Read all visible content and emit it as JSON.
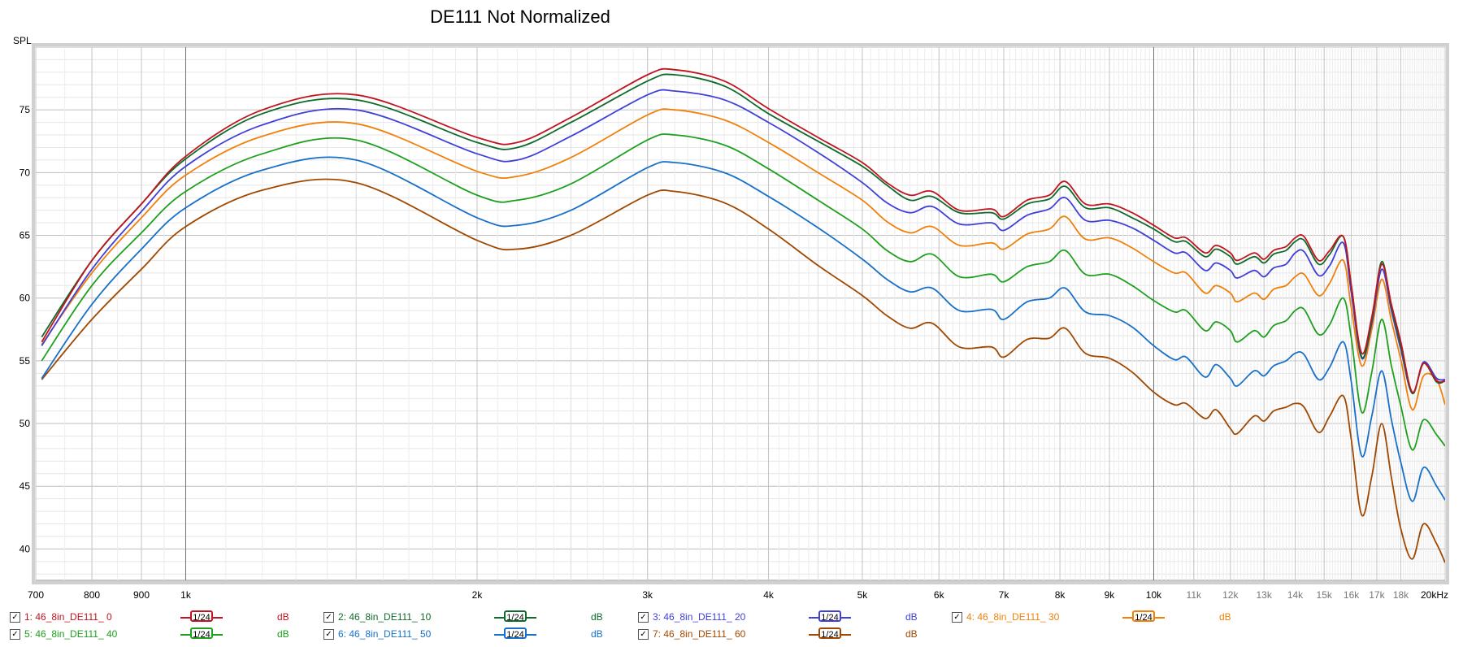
{
  "chart_data": {
    "type": "line",
    "title": "DE111 Not Normalized",
    "ylabel": "SPL",
    "xlabel": "",
    "xscale": "log",
    "xlim": [
      700,
      20000
    ],
    "ylim": [
      37.5,
      80
    ],
    "grid": true,
    "x_ticks": [
      {
        "v": 700,
        "label": "700"
      },
      {
        "v": 800,
        "label": "800"
      },
      {
        "v": 900,
        "label": "900"
      },
      {
        "v": 1000,
        "label": "1k"
      },
      {
        "v": 2000,
        "label": "2k"
      },
      {
        "v": 3000,
        "label": "3k"
      },
      {
        "v": 4000,
        "label": "4k"
      },
      {
        "v": 5000,
        "label": "5k"
      },
      {
        "v": 6000,
        "label": "6k"
      },
      {
        "v": 7000,
        "label": "7k"
      },
      {
        "v": 8000,
        "label": "8k"
      },
      {
        "v": 9000,
        "label": "9k"
      },
      {
        "v": 10000,
        "label": "10k"
      },
      {
        "v": 11000,
        "label": "11k"
      },
      {
        "v": 12000,
        "label": "12k"
      },
      {
        "v": 13000,
        "label": "13k"
      },
      {
        "v": 14000,
        "label": "14k"
      },
      {
        "v": 15000,
        "label": "15k"
      },
      {
        "v": 16000,
        "label": "16k"
      },
      {
        "v": 17000,
        "label": "17k"
      },
      {
        "v": 18000,
        "label": "18k"
      },
      {
        "v": 20000,
        "label": "20kHz"
      }
    ],
    "y_ticks": [
      {
        "v": 40,
        "label": "40"
      },
      {
        "v": 45,
        "label": "45"
      },
      {
        "v": 50,
        "label": "50"
      },
      {
        "v": 55,
        "label": "55"
      },
      {
        "v": 60,
        "label": "60"
      },
      {
        "v": 65,
        "label": "65"
      },
      {
        "v": 70,
        "label": "70"
      },
      {
        "v": 75,
        "label": "75"
      }
    ],
    "series": [
      {
        "name": "1: 46_8in_DE111_ 0",
        "color": "#c0141e",
        "x": [
          710,
          800,
          900,
          1000,
          1200,
          1500,
          2000,
          2200,
          2500,
          3000,
          3200,
          3600,
          4000,
          4500,
          5000,
          5300,
          5600,
          5900,
          6300,
          6800,
          7000,
          7400,
          7800,
          8100,
          8500,
          9000,
          9500,
          10000,
          10500,
          10800,
          11300,
          11600,
          12000,
          12200,
          12700,
          13000,
          13300,
          13700,
          14000,
          14300,
          14800,
          15200,
          15700,
          16000,
          16400,
          16800,
          17200,
          17600,
          18000,
          18500,
          19000,
          19600,
          20000
        ],
        "y": [
          56.5,
          63,
          67.5,
          71.3,
          75,
          76.2,
          72.8,
          72.4,
          74.4,
          77.8,
          78.2,
          77.3,
          75.1,
          72.8,
          70.8,
          69.2,
          68.2,
          68.5,
          67,
          67.1,
          66.5,
          67.8,
          68.2,
          69.3,
          67.5,
          67.5,
          66.8,
          65.8,
          64.8,
          64.8,
          63.6,
          64.2,
          63.6,
          63,
          63.6,
          63.1,
          63.8,
          64.1,
          64.8,
          64.9,
          63,
          63.8,
          64.9,
          61,
          55.6,
          58.5,
          62.7,
          59.5,
          56.5,
          52.5,
          54.8,
          53.4,
          53.4
        ]
      },
      {
        "name": "2: 46_8in_DE111_ 10",
        "color": "#0e6b2c",
        "x": [
          710,
          800,
          900,
          1000,
          1200,
          1500,
          2000,
          2200,
          2500,
          3000,
          3200,
          3600,
          4000,
          4500,
          5000,
          5300,
          5600,
          5900,
          6300,
          6800,
          7000,
          7400,
          7800,
          8100,
          8500,
          9000,
          9500,
          10000,
          10500,
          10800,
          11300,
          11600,
          12000,
          12200,
          12700,
          13000,
          13300,
          13700,
          14000,
          14300,
          14800,
          15200,
          15700,
          16000,
          16400,
          16800,
          17200,
          17600,
          18000,
          18500,
          19000,
          19600,
          20000
        ],
        "y": [
          56.9,
          63,
          67.5,
          71.1,
          74.7,
          75.8,
          72.4,
          72,
          74,
          77.3,
          77.8,
          76.9,
          74.7,
          72.5,
          70.5,
          69,
          67.8,
          68.1,
          66.8,
          66.8,
          66.3,
          67.5,
          67.9,
          68.9,
          67.2,
          67.2,
          66.4,
          65.5,
          64.5,
          64.5,
          63.3,
          63.9,
          63.3,
          62.7,
          63.3,
          62.8,
          63.5,
          63.8,
          64.5,
          64.6,
          62.7,
          63.5,
          64.9,
          61,
          55.3,
          58.2,
          62.9,
          59.3,
          56.2,
          52.4,
          54.8,
          53.3,
          53.4
        ]
      },
      {
        "name": "3: 46_8in_DE111_ 20",
        "color": "#4040d8",
        "x": [
          710,
          800,
          900,
          1000,
          1200,
          1500,
          2000,
          2200,
          2500,
          3000,
          3200,
          3600,
          4000,
          4500,
          5000,
          5300,
          5600,
          5900,
          6300,
          6800,
          7000,
          7400,
          7800,
          8100,
          8500,
          9000,
          9500,
          10000,
          10500,
          10800,
          11300,
          11600,
          12000,
          12200,
          12700,
          13000,
          13300,
          13700,
          14000,
          14300,
          14800,
          15200,
          15700,
          16000,
          16400,
          16800,
          17200,
          17600,
          18000,
          18500,
          19000,
          19600,
          20000
        ],
        "y": [
          56.2,
          62.3,
          66.9,
          70.5,
          73.8,
          75,
          71.5,
          71,
          72.9,
          76.2,
          76.5,
          75.8,
          74,
          71.6,
          69.2,
          67.6,
          66.8,
          67.3,
          65.9,
          66,
          65.4,
          66.6,
          67.1,
          68,
          66.2,
          66.2,
          65.6,
          64.6,
          63.6,
          63.6,
          62.2,
          62.8,
          62.2,
          61.6,
          62.2,
          61.7,
          62.4,
          62.7,
          63.6,
          63.7,
          61.8,
          62.6,
          64.4,
          60.4,
          55.2,
          58,
          62.3,
          59,
          55.9,
          52.4,
          54.9,
          53.6,
          53.5
        ]
      },
      {
        "name": "4: 46_8in_DE111_ 30",
        "color": "#f0800a",
        "x": [
          710,
          800,
          900,
          1000,
          1200,
          1500,
          2000,
          2200,
          2500,
          3000,
          3200,
          3600,
          4000,
          4500,
          5000,
          5300,
          5600,
          5900,
          6300,
          6800,
          7000,
          7400,
          7800,
          8100,
          8500,
          9000,
          9500,
          10000,
          10500,
          10800,
          11300,
          11600,
          12000,
          12200,
          12700,
          13000,
          13300,
          13700,
          14000,
          14300,
          14800,
          15200,
          15700,
          16000,
          16400,
          16800,
          17200,
          17600,
          18000,
          18500,
          19000,
          19600,
          20000
        ],
        "y": [
          56.3,
          62,
          66.4,
          69.8,
          72.9,
          73.9,
          70.1,
          69.7,
          71.2,
          74.6,
          75,
          74.2,
          72.4,
          70,
          67.8,
          66.1,
          65.2,
          65.7,
          64.2,
          64.4,
          63.9,
          65.1,
          65.5,
          66.5,
          64.7,
          64.8,
          64,
          62.9,
          62,
          62,
          60.4,
          61,
          60.4,
          59.7,
          60.4,
          59.9,
          60.7,
          61,
          61.7,
          61.9,
          60.2,
          61.2,
          63,
          59.2,
          54.6,
          57.5,
          61.5,
          58.2,
          55.1,
          51.1,
          53.8,
          53.5,
          51.5
        ]
      },
      {
        "name": "5: 46_8in_DE111_ 40",
        "color": "#1ea01e",
        "x": [
          710,
          800,
          900,
          1000,
          1200,
          1500,
          2000,
          2200,
          2500,
          3000,
          3200,
          3600,
          4000,
          4500,
          5000,
          5300,
          5600,
          5900,
          6300,
          6800,
          7000,
          7400,
          7800,
          8100,
          8500,
          9000,
          9500,
          10000,
          10500,
          10800,
          11300,
          11600,
          12000,
          12200,
          12700,
          13000,
          13300,
          13700,
          14000,
          14300,
          14800,
          15200,
          15700,
          16000,
          16400,
          16800,
          17200,
          17600,
          18000,
          18500,
          19000,
          19600,
          20000
        ],
        "y": [
          55,
          61,
          65.2,
          68.5,
          71.5,
          72.6,
          68.2,
          67.8,
          69.1,
          72.6,
          73,
          72.2,
          70.3,
          67.8,
          65.5,
          63.8,
          62.9,
          63.5,
          61.7,
          61.9,
          61.3,
          62.5,
          62.9,
          63.8,
          61.9,
          61.9,
          61,
          59.8,
          58.9,
          59,
          57.4,
          58.1,
          57.4,
          56.5,
          57.4,
          56.9,
          57.8,
          58.2,
          59,
          59.1,
          57.1,
          57.9,
          60,
          56.8,
          50.9,
          54.1,
          58.3,
          54.6,
          51.4,
          47.9,
          50.3,
          49.1,
          48.2
        ]
      },
      {
        "name": "6: 46_8in_DE111_ 50",
        "color": "#1870c8",
        "x": [
          710,
          800,
          900,
          1000,
          1200,
          1500,
          2000,
          2200,
          2500,
          3000,
          3200,
          3600,
          4000,
          4500,
          5000,
          5300,
          5600,
          5900,
          6300,
          6800,
          7000,
          7400,
          7800,
          8100,
          8500,
          9000,
          9500,
          10000,
          10500,
          10800,
          11300,
          11600,
          12000,
          12200,
          12700,
          13000,
          13300,
          13700,
          14000,
          14300,
          14800,
          15200,
          15700,
          16000,
          16400,
          16800,
          17200,
          17600,
          18000,
          18500,
          19000,
          19600,
          20000
        ],
        "y": [
          53.6,
          59.5,
          63.9,
          67.2,
          70.2,
          71,
          66.4,
          65.8,
          67,
          70.4,
          70.8,
          70,
          68.1,
          65.6,
          63.1,
          61.5,
          60.5,
          60.8,
          59,
          59.1,
          58.3,
          59.7,
          60,
          60.8,
          58.9,
          58.6,
          57.7,
          56.2,
          55.1,
          55.3,
          53.7,
          54.7,
          53.6,
          53,
          54.2,
          53.8,
          54.6,
          55,
          55.6,
          55.5,
          53.5,
          54.5,
          56.5,
          53.3,
          47.4,
          50.6,
          54.2,
          50.3,
          46.9,
          43.8,
          46.5,
          45,
          43.9
        ]
      },
      {
        "name": "7: 46_8in_DE111_ 60",
        "color": "#a04800",
        "x": [
          710,
          800,
          900,
          1000,
          1200,
          1500,
          2000,
          2200,
          2500,
          3000,
          3200,
          3600,
          4000,
          4500,
          5000,
          5300,
          5600,
          5900,
          6300,
          6800,
          7000,
          7400,
          7800,
          8100,
          8500,
          9000,
          9500,
          10000,
          10500,
          10800,
          11300,
          11600,
          12000,
          12200,
          12700,
          13000,
          13300,
          13700,
          14000,
          14300,
          14800,
          15200,
          15700,
          16000,
          16400,
          16800,
          17200,
          17600,
          18000,
          18500,
          19000,
          19600,
          20000
        ],
        "y": [
          53.5,
          58.3,
          62.3,
          65.7,
          68.6,
          69.2,
          64.6,
          63.9,
          65,
          68.2,
          68.5,
          67.6,
          65.5,
          62.6,
          60.2,
          58.6,
          57.6,
          58,
          56.1,
          56.1,
          55.3,
          56.7,
          56.8,
          57.6,
          55.6,
          55.2,
          54.1,
          52.5,
          51.5,
          51.6,
          50.4,
          51.1,
          49.6,
          49.2,
          50.6,
          50.2,
          51,
          51.3,
          51.6,
          51.3,
          49.3,
          50.6,
          52.2,
          48.7,
          42.7,
          45.8,
          50,
          45.7,
          41.6,
          39.2,
          42,
          40.4,
          38.9
        ]
      }
    ]
  },
  "legend": {
    "smoothing": "1/24",
    "unit": "dB",
    "check": "✓",
    "items": [
      {
        "label": "1: 46_8in_DE111_ 0"
      },
      {
        "label": "2: 46_8in_DE111_ 10"
      },
      {
        "label": "3: 46_8in_DE111_ 20"
      },
      {
        "label": "4: 46_8in_DE111_ 30"
      },
      {
        "label": "5: 46_8in_DE111_ 40"
      },
      {
        "label": "6: 46_8in_DE111_ 50"
      },
      {
        "label": "7: 46_8in_DE111_ 60"
      }
    ]
  }
}
